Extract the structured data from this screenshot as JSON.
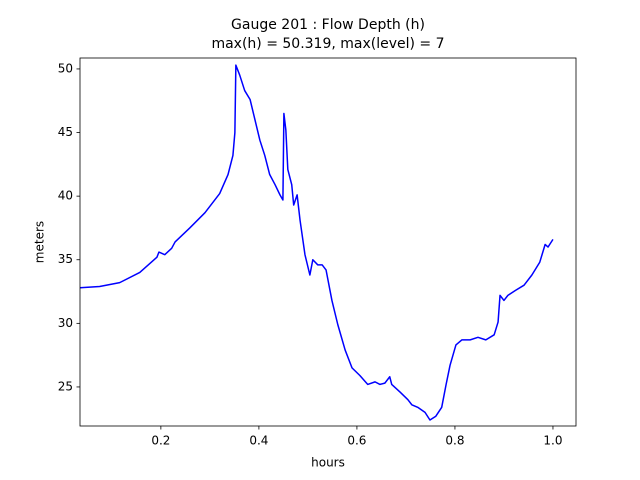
{
  "chart_data": {
    "type": "line",
    "title": "Gauge 201 : Flow Depth (h)",
    "subtitle": "max(h) =  50.319,    max(level) = 7",
    "x_label": "hours",
    "y_label": "meters",
    "xlim": [
      0.035,
      1.047
    ],
    "ylim": [
      21.93,
      50.86
    ],
    "xticks": [
      0.2,
      0.4,
      0.6,
      0.8,
      {
        "value": 1,
        "label": "1.0"
      }
    ],
    "yticks": [
      25,
      30,
      35,
      40,
      45,
      50
    ],
    "grid": false,
    "series": [
      {
        "color": "#0000ff",
        "x": [
          0.035,
          0.075,
          0.116,
          0.157,
          0.192,
          0.196,
          0.208,
          0.222,
          0.229,
          0.259,
          0.29,
          0.32,
          0.337,
          0.347,
          0.351,
          0.353,
          0.361,
          0.371,
          0.382,
          0.392,
          0.402,
          0.412,
          0.422,
          0.433,
          0.443,
          0.449,
          0.451,
          0.455,
          0.459,
          0.467,
          0.471,
          0.478,
          0.484,
          0.494,
          0.504,
          0.51,
          0.52,
          0.529,
          0.537,
          0.549,
          0.561,
          0.576,
          0.59,
          0.606,
          0.622,
          0.637,
          0.647,
          0.657,
          0.667,
          0.671,
          0.688,
          0.704,
          0.712,
          0.724,
          0.739,
          0.749,
          0.761,
          0.773,
          0.782,
          0.79,
          0.802,
          0.814,
          0.831,
          0.847,
          0.863,
          0.88,
          0.888,
          0.892,
          0.9,
          0.908,
          0.924,
          0.941,
          0.957,
          0.973,
          0.984,
          0.99,
          1.0
        ],
        "values": [
          32.8,
          32.9,
          33.2,
          34.0,
          35.2,
          35.6,
          35.4,
          35.9,
          36.4,
          37.5,
          38.7,
          40.2,
          41.7,
          43.2,
          45.0,
          50.3,
          49.5,
          48.3,
          47.6,
          46.0,
          44.4,
          43.2,
          41.7,
          40.9,
          40.1,
          39.7,
          46.5,
          45.2,
          42.1,
          40.9,
          39.3,
          40.1,
          38.1,
          35.4,
          33.8,
          35.0,
          34.6,
          34.6,
          34.2,
          31.8,
          29.9,
          27.9,
          26.5,
          25.9,
          25.2,
          25.4,
          25.2,
          25.3,
          25.8,
          25.2,
          24.6,
          24.0,
          23.6,
          23.4,
          23.0,
          22.4,
          22.7,
          23.4,
          25.2,
          26.7,
          28.3,
          28.7,
          28.7,
          28.9,
          28.7,
          29.1,
          30.1,
          32.2,
          31.8,
          32.2,
          32.6,
          33.0,
          33.8,
          34.8,
          36.2,
          36.0,
          36.6
        ]
      }
    ]
  }
}
